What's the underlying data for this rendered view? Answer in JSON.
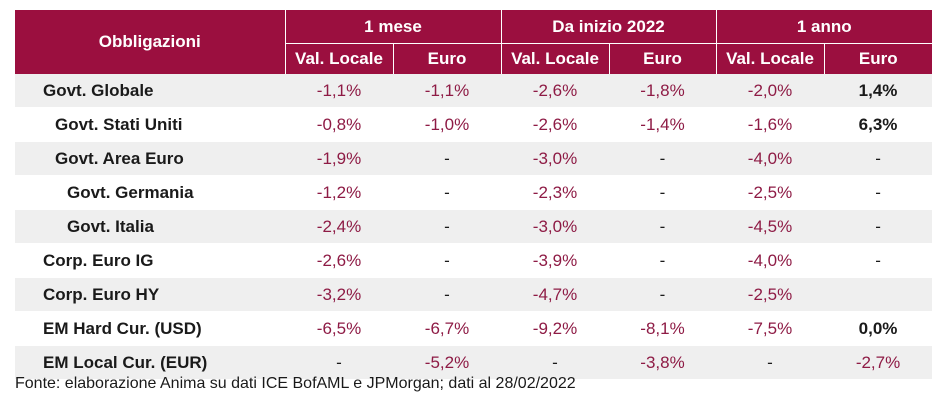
{
  "header": {
    "row_label": "Obbligazioni",
    "groups": [
      "1 mese",
      "Da inizio 2022",
      "1 anno"
    ],
    "subcols": [
      "Val. Locale",
      "Euro",
      "Val. Locale",
      "Euro",
      "Val. Locale",
      "Euro"
    ]
  },
  "rows": [
    {
      "label": "Govt. Globale",
      "level": 0,
      "values": [
        "-1,1%",
        "-1,1%",
        "-2,6%",
        "-1,8%",
        "-2,0%",
        "1,4%"
      ]
    },
    {
      "label": "Govt. Stati Uniti",
      "level": 1,
      "values": [
        "-0,8%",
        "-1,0%",
        "-2,6%",
        "-1,4%",
        "-1,6%",
        "6,3%"
      ]
    },
    {
      "label": "Govt. Area Euro",
      "level": 1,
      "values": [
        "-1,9%",
        "-",
        "-3,0%",
        "-",
        "-4,0%",
        "-"
      ]
    },
    {
      "label": "Govt. Germania",
      "level": 2,
      "values": [
        "-1,2%",
        "-",
        "-2,3%",
        "-",
        "-2,5%",
        "-"
      ]
    },
    {
      "label": "Govt. Italia",
      "level": 2,
      "values": [
        "-2,4%",
        "-",
        "-3,0%",
        "-",
        "-4,5%",
        "-"
      ]
    },
    {
      "label": "Corp. Euro IG",
      "level": 0,
      "values": [
        "-2,6%",
        "-",
        "-3,9%",
        "-",
        "-4,0%",
        "-"
      ]
    },
    {
      "label": "Corp. Euro HY",
      "level": 0,
      "values": [
        "-3,2%",
        "-",
        "-4,7%",
        "-",
        "-2,5%",
        ""
      ]
    },
    {
      "label": "EM Hard Cur. (USD)",
      "level": 0,
      "values": [
        "-6,5%",
        "-6,7%",
        "-9,2%",
        "-8,1%",
        "-7,5%",
        "0,0%"
      ]
    },
    {
      "label": "EM Local Cur. (EUR)",
      "level": 0,
      "values": [
        "-",
        "-5,2%",
        "-",
        "-3,8%",
        "-",
        "-2,7%"
      ]
    }
  ],
  "source": "Fonte: elaborazione Anima su dati ICE BofAML e JPMorgan; dati al 28/02/2022",
  "colors": {
    "header_bg": "#9b0f3f",
    "negative_text": "#8e1b45",
    "stripe": "#efefef"
  }
}
